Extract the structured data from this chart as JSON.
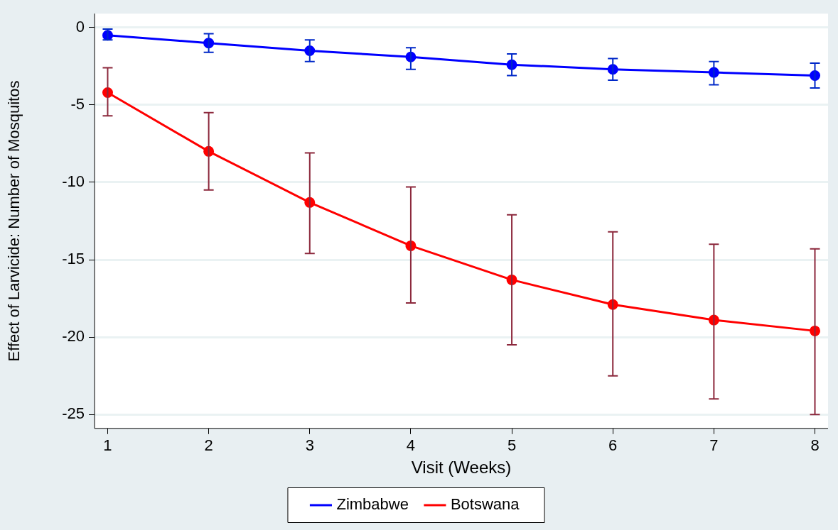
{
  "chart_data": {
    "type": "line",
    "xlabel": "Visit (Weeks)",
    "ylabel": "Effect of Larvicide: Number of Mosquitos",
    "x": [
      1,
      2,
      3,
      4,
      5,
      6,
      7,
      8
    ],
    "series": [
      {
        "name": "Zimbabwe",
        "color": "#0000ff",
        "values": [
          -0.5,
          -1.0,
          -1.5,
          -1.9,
          -2.4,
          -2.7,
          -2.9,
          -3.1
        ],
        "errors": [
          [
            -0.8,
            -0.1
          ],
          [
            -1.6,
            -0.4
          ],
          [
            -2.2,
            -0.8
          ],
          [
            -2.7,
            -1.3
          ],
          [
            -3.1,
            -1.7
          ],
          [
            -3.4,
            -2.0
          ],
          [
            -3.7,
            -2.2
          ],
          [
            -3.9,
            -2.3
          ]
        ]
      },
      {
        "name": "Botswana",
        "color": "#ff0000",
        "values": [
          -4.2,
          -8.0,
          -11.3,
          -14.1,
          -16.3,
          -17.9,
          -18.9,
          -19.6
        ],
        "errors": [
          [
            -5.7,
            -2.6
          ],
          [
            -10.5,
            -5.5
          ],
          [
            -14.6,
            -8.1
          ],
          [
            -17.8,
            -10.3
          ],
          [
            -20.5,
            -12.1
          ],
          [
            -22.5,
            -13.2
          ],
          [
            -24.0,
            -14.0
          ],
          [
            -25.0,
            -14.3
          ]
        ]
      }
    ],
    "xlim": [
      0.87,
      8.13
    ],
    "ylim": [
      -25.9,
      0.9
    ],
    "xticks": [
      1,
      2,
      3,
      4,
      5,
      6,
      7,
      8
    ],
    "yticks": [
      0,
      -5,
      -10,
      -15,
      -20,
      -25
    ],
    "grid": "y",
    "legend": "bottom",
    "marker": "circle",
    "line_style": "solid"
  }
}
